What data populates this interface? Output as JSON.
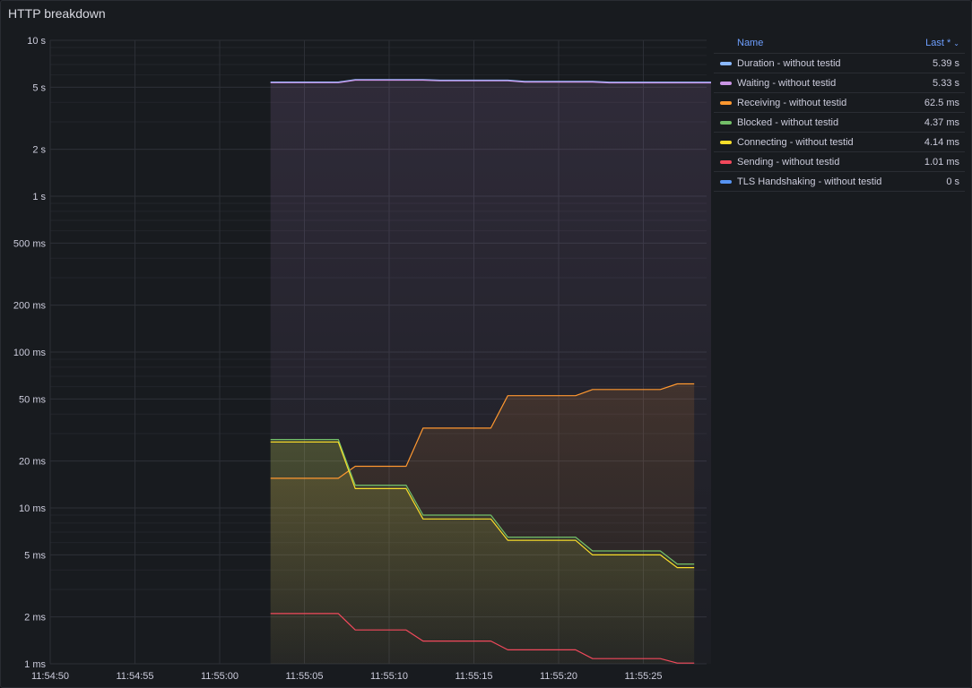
{
  "panel": {
    "title": "HTTP breakdown"
  },
  "legend": {
    "name_header": "Name",
    "last_header": "Last *",
    "sort_icon": "chevron-down-icon",
    "rows": [
      {
        "label": "Duration - without testid",
        "value": "5.39 s",
        "color": "#8ab8ff"
      },
      {
        "label": "Waiting - without testid",
        "value": "5.33 s",
        "color": "#ca95e5"
      },
      {
        "label": "Receiving - without testid",
        "value": "62.5 ms",
        "color": "#ff9830"
      },
      {
        "label": "Blocked - without testid",
        "value": "4.37 ms",
        "color": "#73bf69"
      },
      {
        "label": "Connecting - without testid",
        "value": "4.14 ms",
        "color": "#fade2a"
      },
      {
        "label": "Sending - without testid",
        "value": "1.01 ms",
        "color": "#f2495c"
      },
      {
        "label": "TLS Handshaking - without testid",
        "value": "0 s",
        "color": "#5794f2"
      }
    ]
  },
  "chart_data": {
    "type": "line",
    "yscale": "log",
    "ylim_ms": [
      1,
      10000
    ],
    "y_ticks": [
      {
        "v": 10000,
        "label": "10 s"
      },
      {
        "v": 5000,
        "label": "5 s"
      },
      {
        "v": 2000,
        "label": "2 s"
      },
      {
        "v": 1000,
        "label": "1 s"
      },
      {
        "v": 500,
        "label": "500 ms"
      },
      {
        "v": 200,
        "label": "200 ms"
      },
      {
        "v": 100,
        "label": "100 ms"
      },
      {
        "v": 50,
        "label": "50 ms"
      },
      {
        "v": 20,
        "label": "20 ms"
      },
      {
        "v": 10,
        "label": "10 ms"
      },
      {
        "v": 5,
        "label": "5 ms"
      },
      {
        "v": 2,
        "label": "2 ms"
      },
      {
        "v": 1,
        "label": "1 ms"
      }
    ],
    "x_ticks": [
      "11:54:50",
      "11:54:55",
      "11:55:00",
      "11:55:05",
      "11:55:10",
      "11:55:15",
      "11:55:20",
      "11:55:25"
    ],
    "xlim": [
      "11:54:50",
      "11:55:29"
    ],
    "grid": true,
    "legend_position": "right",
    "series": [
      {
        "name": "Duration - without testid",
        "color": "#8ab8ff",
        "points": [
          [
            "11:55:03",
            5400
          ],
          [
            "11:55:07",
            5400
          ],
          [
            "11:55:08",
            5600
          ],
          [
            "11:55:12",
            5600
          ],
          [
            "11:55:13",
            5550
          ],
          [
            "11:55:17",
            5550
          ],
          [
            "11:55:18",
            5450
          ],
          [
            "11:55:22",
            5450
          ],
          [
            "11:55:23",
            5390
          ],
          [
            "11:55:29",
            5390
          ]
        ]
      },
      {
        "name": "Waiting - without testid",
        "color": "#ca95e5",
        "fill": true,
        "points": [
          [
            "11:55:03",
            5350
          ],
          [
            "11:55:07",
            5350
          ],
          [
            "11:55:08",
            5550
          ],
          [
            "11:55:12",
            5550
          ],
          [
            "11:55:13",
            5500
          ],
          [
            "11:55:17",
            5500
          ],
          [
            "11:55:18",
            5400
          ],
          [
            "11:55:22",
            5400
          ],
          [
            "11:55:23",
            5330
          ],
          [
            "11:55:29",
            5330
          ]
        ]
      },
      {
        "name": "Receiving - without testid",
        "color": "#ff9830",
        "fill": true,
        "points": [
          [
            "11:55:03",
            15.5
          ],
          [
            "11:55:07",
            15.5
          ],
          [
            "11:55:08",
            18.5
          ],
          [
            "11:55:11",
            18.5
          ],
          [
            "11:55:12",
            32.5
          ],
          [
            "11:55:16",
            32.5
          ],
          [
            "11:55:17",
            52.5
          ],
          [
            "11:55:21",
            52.5
          ],
          [
            "11:55:22",
            57.5
          ],
          [
            "11:55:26",
            57.5
          ],
          [
            "11:55:27",
            62.5
          ],
          [
            "11:55:28",
            62.5
          ]
        ]
      },
      {
        "name": "Blocked - without testid",
        "color": "#73bf69",
        "fill": true,
        "points": [
          [
            "11:55:03",
            27.5
          ],
          [
            "11:55:07",
            27.5
          ],
          [
            "11:55:08",
            14
          ],
          [
            "11:55:11",
            14
          ],
          [
            "11:55:12",
            9
          ],
          [
            "11:55:16",
            9
          ],
          [
            "11:55:17",
            6.5
          ],
          [
            "11:55:21",
            6.5
          ],
          [
            "11:55:22",
            5.3
          ],
          [
            "11:55:26",
            5.3
          ],
          [
            "11:55:27",
            4.37
          ],
          [
            "11:55:28",
            4.37
          ]
        ]
      },
      {
        "name": "Connecting - without testid",
        "color": "#fade2a",
        "fill": true,
        "points": [
          [
            "11:55:03",
            26.5
          ],
          [
            "11:55:07",
            26.5
          ],
          [
            "11:55:08",
            13.3
          ],
          [
            "11:55:11",
            13.3
          ],
          [
            "11:55:12",
            8.5
          ],
          [
            "11:55:16",
            8.5
          ],
          [
            "11:55:17",
            6.2
          ],
          [
            "11:55:21",
            6.2
          ],
          [
            "11:55:22",
            5.0
          ],
          [
            "11:55:26",
            5.0
          ],
          [
            "11:55:27",
            4.14
          ],
          [
            "11:55:28",
            4.14
          ]
        ]
      },
      {
        "name": "Sending - without testid",
        "color": "#f2495c",
        "points": [
          [
            "11:55:03",
            2.1
          ],
          [
            "11:55:07",
            2.1
          ],
          [
            "11:55:08",
            1.65
          ],
          [
            "11:55:11",
            1.65
          ],
          [
            "11:55:12",
            1.4
          ],
          [
            "11:55:16",
            1.4
          ],
          [
            "11:55:17",
            1.23
          ],
          [
            "11:55:21",
            1.23
          ],
          [
            "11:55:22",
            1.08
          ],
          [
            "11:55:26",
            1.08
          ],
          [
            "11:55:27",
            1.01
          ],
          [
            "11:55:28",
            1.01
          ]
        ]
      },
      {
        "name": "TLS Handshaking - without testid",
        "color": "#5794f2",
        "points": []
      }
    ]
  }
}
